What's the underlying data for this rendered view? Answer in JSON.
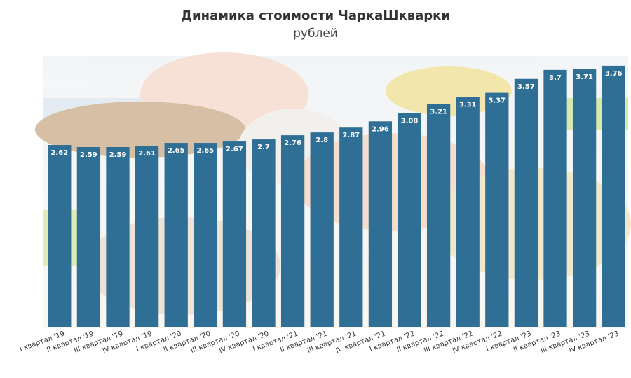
{
  "chart": {
    "title": "Динамика стоимости ЧаркаШкварки",
    "subtitle": "рублей"
  },
  "colors": {
    "bar": "#2f6f96",
    "bar_label": "#ffffff",
    "tick_label": "#333333"
  },
  "chart_data": {
    "type": "bar",
    "title": "Динамика стоимости ЧаркаШкварки",
    "subtitle": "рублей",
    "xlabel": "",
    "ylabel": "",
    "ylim": [
      0,
      3.9
    ],
    "grid": false,
    "categories": [
      "I квартал '19",
      "II квартал '19",
      "III квартал '19",
      "IV квартал '19",
      "I квартал '20",
      "II квартал '20",
      "III квартал '20",
      "IV квартал '20",
      "I квартал '21",
      "II квартал '21",
      "III квартал '21",
      "IV квартал '21",
      "I квартал '22",
      "II квартал '22",
      "III квартал '22",
      "IV квартал '22",
      "I квартал '23",
      "II квартал '23",
      "III квартал '23",
      "IV квартал '23"
    ],
    "values": [
      2.62,
      2.59,
      2.59,
      2.61,
      2.65,
      2.65,
      2.67,
      2.7,
      2.76,
      2.8,
      2.87,
      2.96,
      3.08,
      3.21,
      3.31,
      3.37,
      3.57,
      3.7,
      3.71,
      3.76
    ],
    "labels": [
      "2.62",
      "2.59",
      "2.59",
      "2.61",
      "2.65",
      "2.65",
      "2.67",
      "2.7",
      "2.76",
      "2.8",
      "2.87",
      "2.96",
      "3.08",
      "3.21",
      "3.31",
      "3.37",
      "3.57",
      "3.7",
      "3.71",
      "3.76"
    ]
  }
}
